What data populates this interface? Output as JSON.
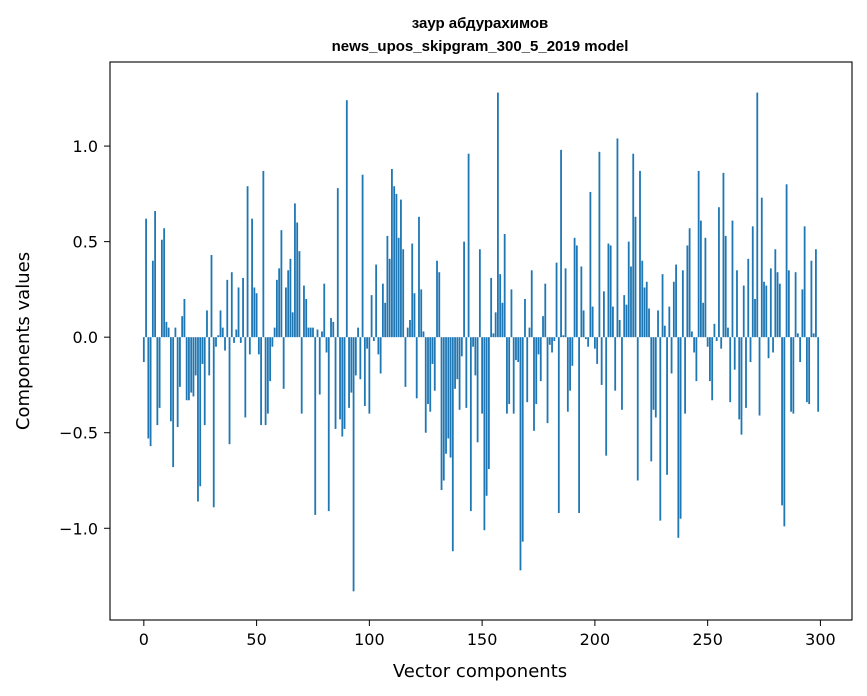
{
  "chart_data": {
    "type": "bar",
    "title": "заур абдурахимов",
    "subtitle": "news_upos_skipgram_300_5_2019 model",
    "xlabel": "Vector components",
    "ylabel": "Components values",
    "xlim": [
      -15,
      314
    ],
    "ylim": [
      -1.48,
      1.44
    ],
    "xticks": [
      0,
      50,
      100,
      150,
      200,
      250,
      300
    ],
    "yticks": [
      -1.0,
      -0.5,
      0.0,
      0.5,
      1.0
    ],
    "grid": false,
    "legend": "none",
    "color": "#1f77b4",
    "values": [
      -0.13,
      0.62,
      -0.53,
      -0.57,
      0.4,
      0.66,
      -0.46,
      -0.37,
      0.51,
      0.57,
      0.08,
      0.05,
      -0.44,
      -0.68,
      0.05,
      -0.47,
      -0.26,
      0.11,
      0.2,
      -0.33,
      -0.33,
      -0.29,
      -0.31,
      -0.2,
      -0.86,
      -0.78,
      -0.14,
      -0.46,
      0.14,
      -0.2,
      0.43,
      -0.89,
      -0.05,
      0.01,
      0.14,
      0.05,
      -0.07,
      0.3,
      -0.56,
      0.34,
      -0.03,
      0.04,
      0.26,
      -0.03,
      0.31,
      -0.42,
      0.79,
      -0.09,
      0.62,
      0.26,
      0.23,
      -0.09,
      -0.46,
      0.87,
      -0.46,
      -0.4,
      -0.23,
      -0.05,
      0.05,
      0.3,
      0.36,
      0.56,
      -0.27,
      0.26,
      0.35,
      0.41,
      0.13,
      0.7,
      0.6,
      0.45,
      -0.4,
      0.27,
      0.2,
      0.05,
      0.05,
      0.05,
      -0.93,
      0.04,
      -0.3,
      0.03,
      0.28,
      -0.08,
      -0.91,
      0.1,
      0.08,
      -0.48,
      0.78,
      -0.43,
      -0.52,
      -0.48,
      1.24,
      -0.37,
      -0.29,
      -1.33,
      -0.2,
      0.05,
      -0.22,
      0.85,
      -0.36,
      -0.06,
      -0.4,
      0.22,
      -0.02,
      0.38,
      -0.09,
      -0.19,
      0.28,
      0.18,
      0.53,
      0.41,
      0.88,
      0.79,
      0.75,
      0.52,
      0.72,
      0.46,
      -0.26,
      0.05,
      0.09,
      0.49,
      0.23,
      -0.32,
      0.63,
      0.25,
      0.03,
      -0.5,
      -0.35,
      -0.39,
      -0.14,
      -0.28,
      0.4,
      0.34,
      -0.8,
      -0.75,
      -0.61,
      -0.53,
      -0.63,
      -1.12,
      -0.27,
      -0.22,
      -0.38,
      -0.1,
      0.5,
      -0.37,
      0.96,
      -0.91,
      -0.05,
      -0.2,
      -0.55,
      0.46,
      -0.4,
      -1.01,
      -0.83,
      -0.69,
      0.31,
      0.02,
      0.13,
      1.28,
      0.33,
      0.18,
      0.54,
      -0.4,
      -0.35,
      0.25,
      -0.4,
      -0.12,
      -0.13,
      -1.22,
      -1.07,
      0.2,
      -0.34,
      0.05,
      0.35,
      -0.49,
      -0.35,
      -0.09,
      -0.23,
      0.11,
      0.28,
      -0.45,
      -0.04,
      -0.08,
      -0.02,
      0.39,
      -0.92,
      0.98,
      0.01,
      0.36,
      -0.39,
      -0.28,
      -0.15,
      0.52,
      0.48,
      -0.92,
      0.37,
      0.14,
      -0.01,
      -0.05,
      0.76,
      0.16,
      -0.06,
      -0.14,
      0.97,
      -0.25,
      0.24,
      -0.62,
      0.49,
      0.48,
      0.16,
      -0.28,
      1.04,
      0.09,
      -0.38,
      0.22,
      0.17,
      0.5,
      0.37,
      0.96,
      0.63,
      -0.75,
      0.87,
      0.4,
      0.26,
      0.29,
      0.15,
      -0.65,
      -0.38,
      -0.42,
      0.14,
      -0.96,
      0.33,
      0.06,
      -0.72,
      0.16,
      -0.19,
      0.29,
      0.38,
      -1.05,
      -0.95,
      0.35,
      -0.4,
      0.48,
      0.57,
      0.03,
      -0.08,
      -0.23,
      0.87,
      0.61,
      0.18,
      0.52,
      -0.05,
      -0.23,
      -0.33,
      0.07,
      -0.02,
      0.68,
      -0.06,
      0.86,
      0.53,
      0.05,
      -0.34,
      0.61,
      -0.17,
      0.35,
      -0.43,
      -0.51,
      0.27,
      -0.37,
      0.41,
      -0.13,
      0.58,
      0.2,
      1.28,
      -0.41,
      0.73,
      0.29,
      0.27,
      -0.11,
      0.36,
      -0.08,
      0.46,
      0.34,
      0.28,
      -0.88,
      -0.99,
      0.8,
      0.35,
      -0.39,
      -0.4,
      0.34,
      0.02,
      -0.13,
      0.25,
      0.58,
      -0.34,
      -0.35,
      0.4,
      0.02,
      0.46,
      -0.39
    ]
  }
}
